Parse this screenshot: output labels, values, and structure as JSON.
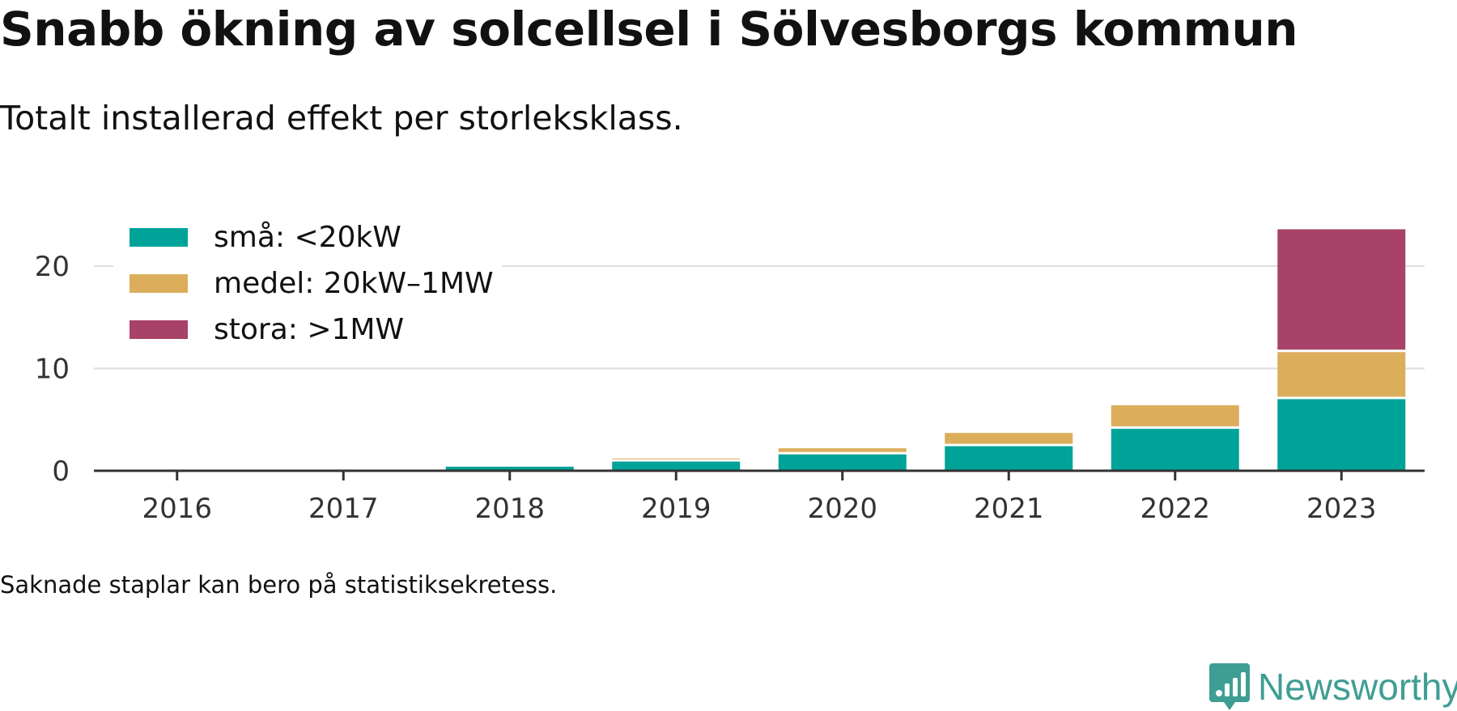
{
  "title": "Snabb ökning av solcellsel i Sölvesborgs kommun",
  "subtitle": "Totalt installerad effekt per storleksklass.",
  "note": "Saknade staplar kan bero på statistiksekretess.",
  "brand": {
    "name": "Newsworthy",
    "icon": "newsworthy-logo-icon",
    "color": "#3f9e93"
  },
  "chart_data": {
    "type": "bar",
    "stacked": true,
    "categories": [
      "2016",
      "2017",
      "2018",
      "2019",
      "2020",
      "2021",
      "2022",
      "2023"
    ],
    "series": [
      {
        "name": "små: <20kW",
        "color": "#00a398",
        "values": [
          0,
          0,
          0.4,
          0.9,
          1.6,
          2.4,
          4.1,
          7.0
        ]
      },
      {
        "name": "medel: 20kW–1MW",
        "color": "#dcae5c",
        "values": [
          0,
          0,
          0,
          0.3,
          0.6,
          1.3,
          2.3,
          4.6
        ]
      },
      {
        "name": "stora: >1MW",
        "color": "#a84269",
        "values": [
          0,
          0,
          0,
          0,
          0,
          0,
          0,
          12.0
        ]
      }
    ],
    "y_ticks": [
      "0",
      "10",
      "20"
    ],
    "ylim": [
      0,
      24.5
    ],
    "grid": true,
    "legend_position": "top-left"
  }
}
